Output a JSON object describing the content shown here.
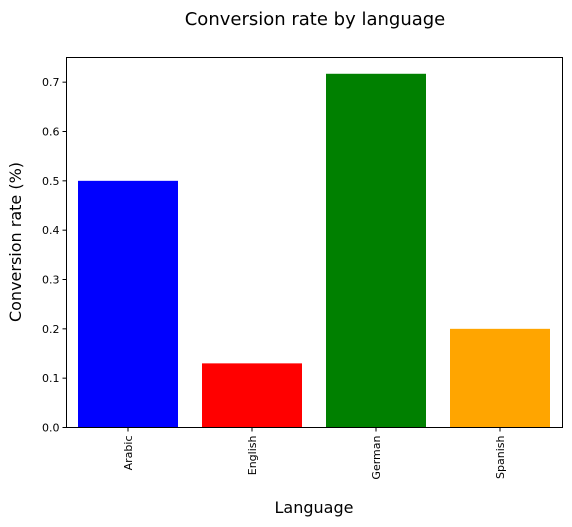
{
  "chart_data": {
    "type": "bar",
    "title": "Conversion rate by language",
    "xlabel": "Language",
    "ylabel": "Conversion rate (%)",
    "categories": [
      "Arabic",
      "English",
      "German",
      "Spanish"
    ],
    "values": [
      0.5,
      0.13,
      0.717,
      0.2
    ],
    "colors": [
      "#0000ff",
      "#ff0000",
      "#008000",
      "#ffa500"
    ],
    "ylim": [
      0,
      0.75
    ],
    "yticks": [
      "0.0",
      "0.1",
      "0.2",
      "0.3",
      "0.4",
      "0.5",
      "0.6",
      "0.7"
    ],
    "grid": false,
    "legend": "none"
  }
}
